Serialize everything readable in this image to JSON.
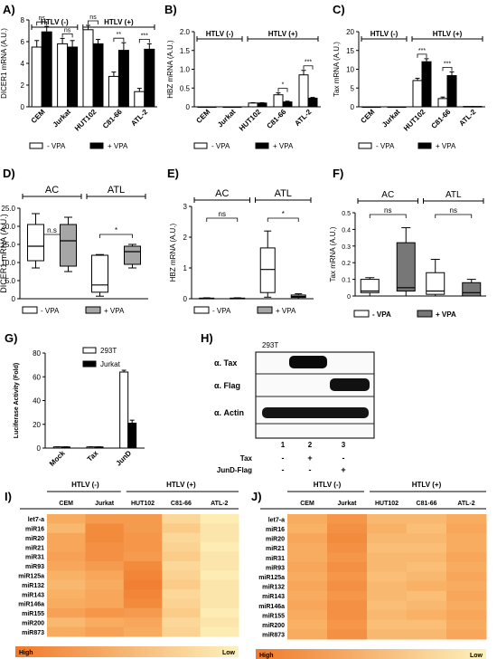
{
  "panels": {
    "A": "A)",
    "B": "B)",
    "C": "C)",
    "D": "D)",
    "E": "E)",
    "F": "F)",
    "G": "G)",
    "H": "H)",
    "I": "I)",
    "J": "J)"
  },
  "chart_data": [
    {
      "panel": "A",
      "type": "bar",
      "ylabel": "DICER1 mRNA (A.U.)",
      "ylim": [
        0,
        8
      ],
      "yticks": [
        0,
        2,
        4,
        6,
        8
      ],
      "categories": [
        "CEM",
        "Jurkat",
        "HUT102",
        "C81-66",
        "ATL-2"
      ],
      "series": [
        {
          "name": "- VPA",
          "values": [
            5.5,
            5.8,
            7.1,
            2.8,
            1.4
          ],
          "errors": [
            0.6,
            0.5,
            0.4,
            0.4,
            0.3
          ]
        },
        {
          "name": "+ VPA",
          "values": [
            6.9,
            5.5,
            5.8,
            5.2,
            5.3
          ],
          "errors": [
            0.5,
            0.6,
            0.4,
            0.7,
            0.5
          ]
        }
      ],
      "groups": [
        {
          "label": "HTLV  (-)",
          "span": [
            0,
            1
          ]
        },
        {
          "label": "HTLV (+)",
          "span": [
            2,
            4
          ]
        }
      ],
      "significance": [
        "ns",
        "ns",
        "ns",
        "**",
        "***"
      ]
    },
    {
      "panel": "B",
      "type": "bar",
      "ylabel": "HBZ mRNA (A.U.)",
      "ylim": [
        0,
        2.0
      ],
      "yticks": [
        0,
        0.5,
        1.0,
        1.5,
        2.0
      ],
      "ytick_labels": [
        "0",
        "0.5",
        "1.0",
        "1.5",
        "2.0"
      ],
      "categories": [
        "CEM",
        "Jurkat",
        "HUT102",
        "C81-66",
        "ATL-2"
      ],
      "series": [
        {
          "name": "- VPA",
          "values": [
            0.0,
            0.0,
            0.1,
            0.32,
            0.85
          ],
          "errors": [
            0.0,
            0.0,
            0.01,
            0.05,
            0.12
          ]
        },
        {
          "name": "+ VPA",
          "values": [
            0.0,
            0.0,
            0.1,
            0.13,
            0.23
          ],
          "errors": [
            0.0,
            0.0,
            0.01,
            0.02,
            0.02
          ]
        }
      ],
      "groups": [
        {
          "label": "HTLV  (-)",
          "span": [
            0,
            1
          ]
        },
        {
          "label": "HTLV (+)",
          "span": [
            2,
            4
          ]
        }
      ],
      "significance": [
        "",
        "",
        "",
        "*",
        "***"
      ]
    },
    {
      "panel": "C",
      "type": "bar",
      "ylabel": "Tax mRNA (A.U.)",
      "ylim": [
        0,
        20
      ],
      "yticks": [
        0,
        5,
        10,
        15,
        20
      ],
      "categories": [
        "CEM",
        "Jurkat",
        "HUT102",
        "C81-66",
        "ATL-2"
      ],
      "series": [
        {
          "name": "- VPA",
          "values": [
            0.0,
            0.0,
            7.0,
            2.2,
            0.1
          ],
          "errors": [
            0.0,
            0.0,
            0.6,
            0.4,
            0.0
          ]
        },
        {
          "name": "+ VPA",
          "values": [
            0.0,
            0.0,
            12.0,
            8.3,
            0.1
          ],
          "errors": [
            0.0,
            0.0,
            0.8,
            1.0,
            0.0
          ]
        }
      ],
      "groups": [
        {
          "label": "HTLV (-)",
          "span": [
            0,
            1
          ]
        },
        {
          "label": "HTLV (+)",
          "span": [
            2,
            4
          ]
        }
      ],
      "significance": [
        "",
        "",
        "***",
        "***",
        ""
      ]
    },
    {
      "panel": "D",
      "type": "box",
      "ylabel": "DICER1 mRNA (A.U.)",
      "ylim": [
        0,
        25
      ],
      "yticks": [
        0,
        5,
        10,
        15,
        20,
        25
      ],
      "ytick_labels": [
        "0",
        "5.0",
        "10.0",
        "15.0",
        "20.0",
        "25.0"
      ],
      "groups": [
        {
          "label": "AC",
          "sig": "n.s"
        },
        {
          "label": "ATL",
          "sig": "*"
        }
      ],
      "series": [
        {
          "name": "- VPA",
          "boxes": [
            [
              8.5,
              10.5,
              14.5,
              20.5,
              23.5
            ],
            [
              0.7,
              1.8,
              3.8,
              12.0,
              12.2
            ]
          ]
        },
        {
          "name": "+ VPA",
          "boxes": [
            [
              7.5,
              9.0,
              16.0,
              20.5,
              22.5
            ],
            [
              8.5,
              9.5,
              13.0,
              14.5,
              15.0
            ]
          ]
        }
      ]
    },
    {
      "panel": "E",
      "type": "box",
      "ylabel": "HBZ mRNA (A.U.)",
      "ylim": [
        0,
        3
      ],
      "yticks": [
        0,
        1,
        2,
        3
      ],
      "groups": [
        {
          "label": "AC",
          "sig": "ns"
        },
        {
          "label": "ATL",
          "sig": "*"
        }
      ],
      "series": [
        {
          "name": "- VPA",
          "boxes": [
            [
              0,
              0,
              0.01,
              0.02,
              0.03
            ],
            [
              0.05,
              0.2,
              0.95,
              1.65,
              2.2
            ]
          ]
        },
        {
          "name": "+ VPA",
          "boxes": [
            [
              0,
              0,
              0.01,
              0.02,
              0.03
            ],
            [
              0.0,
              0.04,
              0.07,
              0.12,
              0.16
            ]
          ]
        }
      ]
    },
    {
      "panel": "F",
      "type": "box",
      "ylabel": "Tax mRNA (A.U.)",
      "ylim": [
        0,
        0.5
      ],
      "yticks": [
        0,
        0.1,
        0.2,
        0.3,
        0.4,
        0.5
      ],
      "groups": [
        {
          "label": "AC",
          "sig": "ns"
        },
        {
          "label": "ATL",
          "sig": "ns"
        }
      ],
      "series": [
        {
          "name": "- VPA",
          "boxes": [
            [
              0.0,
              0.02,
              0.03,
              0.1,
              0.11
            ],
            [
              0.0,
              0.01,
              0.03,
              0.14,
              0.22
            ]
          ]
        },
        {
          "name": "+ VPA",
          "boxes": [
            [
              0.0,
              0.03,
              0.05,
              0.32,
              0.41
            ],
            [
              0.0,
              0.0,
              0.02,
              0.08,
              0.1
            ]
          ]
        }
      ]
    },
    {
      "panel": "G",
      "type": "bar",
      "ylabel": "Luciferase Activity (Fold)",
      "ylim": [
        0,
        80
      ],
      "yticks": [
        0,
        20,
        40,
        60,
        80
      ],
      "categories": [
        "Mock",
        "Tax",
        "JunD"
      ],
      "series": [
        {
          "name": "293T",
          "values": [
            1.0,
            1.0,
            64.0
          ],
          "errors": [
            0.1,
            0.1,
            1.5
          ]
        },
        {
          "name": "Jurkat",
          "values": [
            1.0,
            1.0,
            21.0
          ],
          "errors": [
            0.1,
            0.1,
            2.5
          ]
        }
      ]
    },
    {
      "panel": "I",
      "type": "heatmap",
      "rows": [
        "let7-a",
        "miR16",
        "miR20",
        "miR21",
        "miR31",
        "miR93",
        "miR125a",
        "miR132",
        "miR143",
        "miR146a",
        "miR155",
        "miR200",
        "miR873"
      ],
      "columns": [
        "CEM",
        "Jurkat",
        "HUT102",
        "C81-66",
        "ATL-2"
      ],
      "values": [
        [
          0.55,
          0.7,
          0.7,
          0.2,
          0.05
        ],
        [
          0.45,
          0.85,
          0.7,
          0.3,
          0.1
        ],
        [
          0.6,
          0.85,
          0.75,
          0.2,
          0.1
        ],
        [
          0.6,
          0.8,
          0.75,
          0.25,
          0.05
        ],
        [
          0.65,
          0.8,
          0.7,
          0.3,
          0.1
        ],
        [
          0.6,
          0.7,
          0.85,
          0.2,
          0.1
        ],
        [
          0.5,
          0.6,
          0.9,
          0.25,
          0.05
        ],
        [
          0.45,
          0.55,
          0.95,
          0.3,
          0.1
        ],
        [
          0.5,
          0.6,
          0.9,
          0.2,
          0.1
        ],
        [
          0.55,
          0.6,
          0.85,
          0.25,
          0.1
        ],
        [
          0.65,
          0.75,
          0.7,
          0.3,
          0.05
        ],
        [
          0.45,
          0.55,
          0.6,
          0.2,
          0.1
        ],
        [
          0.55,
          0.65,
          0.55,
          0.25,
          0.05
        ]
      ]
    },
    {
      "panel": "J",
      "type": "heatmap",
      "rows": [
        "let7-a",
        "miR16",
        "miR20",
        "miR21",
        "miR31",
        "miR93",
        "miR125a",
        "miR132",
        "miR143",
        "miR146a",
        "miR155",
        "miR200",
        "miR873"
      ],
      "columns": [
        "CEM",
        "Jurkat",
        "HUT102",
        "C81-66",
        "ATL-2"
      ],
      "values": [
        [
          0.55,
          0.75,
          0.45,
          0.45,
          0.55
        ],
        [
          0.5,
          0.8,
          0.5,
          0.4,
          0.6
        ],
        [
          0.6,
          0.85,
          0.45,
          0.45,
          0.55
        ],
        [
          0.55,
          0.8,
          0.4,
          0.4,
          0.55
        ],
        [
          0.55,
          0.75,
          0.45,
          0.45,
          0.6
        ],
        [
          0.6,
          0.8,
          0.45,
          0.4,
          0.55
        ],
        [
          0.55,
          0.75,
          0.4,
          0.45,
          0.6
        ],
        [
          0.6,
          0.8,
          0.45,
          0.5,
          0.55
        ],
        [
          0.55,
          0.75,
          0.45,
          0.4,
          0.6
        ],
        [
          0.6,
          0.8,
          0.4,
          0.45,
          0.55
        ],
        [
          0.55,
          0.8,
          0.45,
          0.5,
          0.6
        ],
        [
          0.5,
          0.75,
          0.4,
          0.4,
          0.55
        ],
        [
          0.55,
          0.8,
          0.45,
          0.45,
          0.6
        ]
      ]
    }
  ],
  "heatmap_groups": {
    "neg": "HTLV (-)",
    "pos": "HTLV (+)"
  },
  "heatmap_scale": {
    "high": "High",
    "low": "Low"
  },
  "blot": {
    "cell_line": "293T",
    "rows": [
      "α. Tax",
      "α. Flag",
      "α. Actin"
    ],
    "lanes": [
      "1",
      "2",
      "3"
    ],
    "conditions": [
      {
        "label": "Tax",
        "values": [
          "-",
          "+",
          "-"
        ]
      },
      {
        "label": "JunD-Flag",
        "values": [
          "-",
          "-",
          "+"
        ]
      }
    ]
  },
  "colors": {
    "open": "#ffffff",
    "filled": "#000000",
    "gray": "#a6a6a6",
    "dark_gray": "#777777",
    "high": "#f07a2c",
    "low": "#fdf2bc"
  }
}
